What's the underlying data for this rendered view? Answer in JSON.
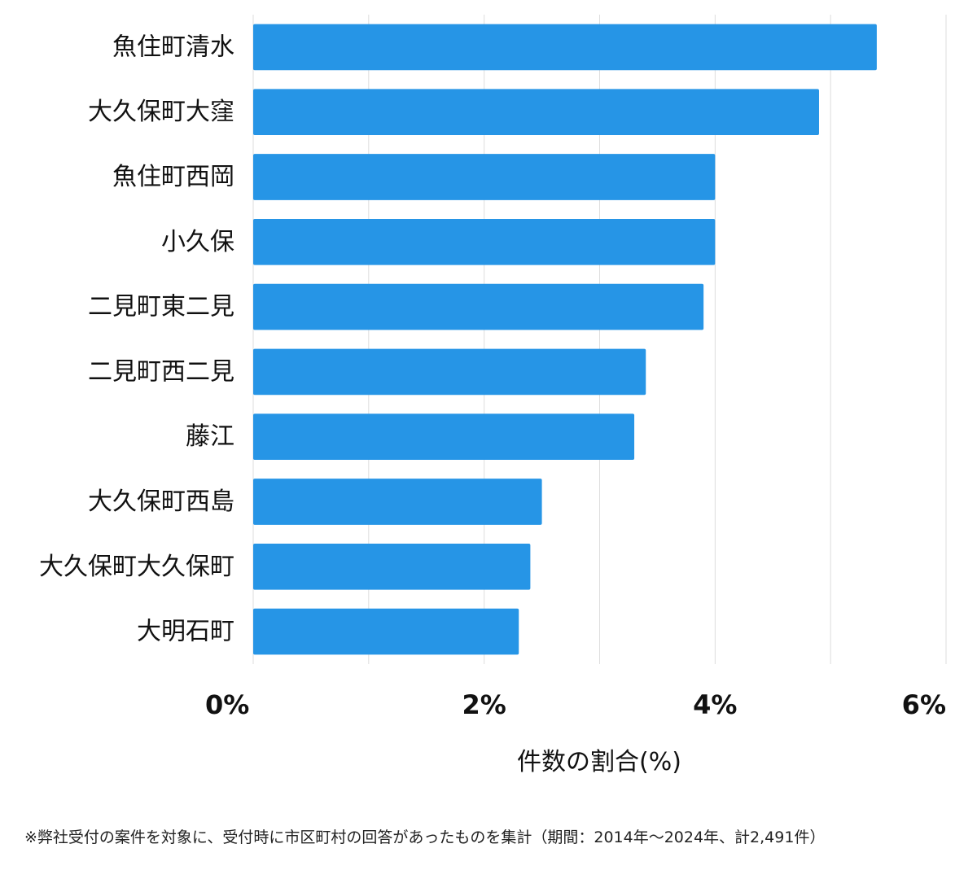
{
  "chart_data": {
    "type": "bar",
    "orientation": "horizontal",
    "categories": [
      "魚住町清水",
      "大久保町大窪",
      "魚住町西岡",
      "小久保",
      "二見町東二見",
      "二見町西二見",
      "藤江",
      "大久保町西島",
      "大久保町大久保町",
      "大明石町"
    ],
    "values": [
      5.4,
      4.9,
      4.0,
      4.0,
      3.9,
      3.4,
      3.3,
      2.5,
      2.4,
      2.3
    ],
    "xlim": [
      0,
      6
    ],
    "xticks": [
      0,
      2,
      4,
      6
    ],
    "xtick_labels": [
      "0%",
      "2%",
      "4%",
      "6%"
    ],
    "xlabel": "件数の割合(%)",
    "grid": true,
    "bar_color": "#2695e6"
  },
  "footnote": "※弊社受付の案件を対象に、受付時に市区町村の回答があったものを集計（期間：2014年～2024年、計2,491件）"
}
